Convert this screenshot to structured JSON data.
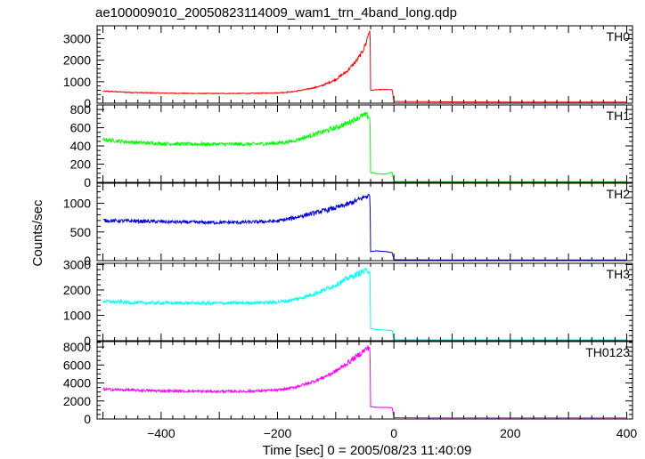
{
  "title": "ae100009010_20050823114009_wam1_trn_4band_long.qdp",
  "chart_data": {
    "type": "line",
    "title": "ae100009010_20050823114009_wam1_trn_4band_long.qdp",
    "xlabel": "Time [sec] 0 = 2005/08/23 11:40:09",
    "ylabel": "Counts/sec",
    "xlim": [
      -510,
      410
    ],
    "x_ticks": [
      -400,
      -200,
      0,
      200,
      400
    ],
    "grid": false,
    "x_minor_step": 20,
    "panels": [
      {
        "name": "TH0",
        "color": "#ff0000",
        "ylim": [
          0,
          3600
        ],
        "y_ticks": [
          0,
          1000,
          2000,
          3000
        ],
        "y_minor_step": 200,
        "points": [
          [
            -500,
            560
          ],
          [
            -450,
            500
          ],
          [
            -400,
            470
          ],
          [
            -350,
            455
          ],
          [
            -300,
            450
          ],
          [
            -250,
            455
          ],
          [
            -200,
            480
          ],
          [
            -175,
            530
          ],
          [
            -150,
            640
          ],
          [
            -125,
            800
          ],
          [
            -100,
            1100
          ],
          [
            -80,
            1500
          ],
          [
            -65,
            1950
          ],
          [
            -55,
            2350
          ],
          [
            -48,
            2800
          ],
          [
            -43,
            3300
          ],
          [
            -41,
            3500
          ],
          [
            -40,
            600
          ],
          [
            -30,
            620
          ],
          [
            -15,
            640
          ],
          [
            -3,
            620
          ],
          [
            0,
            80
          ],
          [
            100,
            60
          ],
          [
            200,
            55
          ],
          [
            300,
            50
          ],
          [
            400,
            50
          ]
        ]
      },
      {
        "name": "TH1",
        "color": "#00ff00",
        "ylim": [
          0,
          850
        ],
        "y_ticks": [
          0,
          200,
          400,
          600,
          800
        ],
        "y_minor_step": 50,
        "points": [
          [
            -500,
            470
          ],
          [
            -450,
            440
          ],
          [
            -400,
            425
          ],
          [
            -350,
            420
          ],
          [
            -300,
            420
          ],
          [
            -250,
            420
          ],
          [
            -200,
            430
          ],
          [
            -175,
            450
          ],
          [
            -150,
            500
          ],
          [
            -125,
            550
          ],
          [
            -100,
            600
          ],
          [
            -80,
            650
          ],
          [
            -65,
            700
          ],
          [
            -55,
            730
          ],
          [
            -48,
            740
          ],
          [
            -43,
            720
          ],
          [
            -41,
            700
          ],
          [
            -40,
            110
          ],
          [
            -30,
            95
          ],
          [
            -15,
            90
          ],
          [
            -3,
            110
          ],
          [
            0,
            10
          ],
          [
            100,
            8
          ],
          [
            200,
            8
          ],
          [
            300,
            8
          ],
          [
            400,
            8
          ]
        ]
      },
      {
        "name": "TH2",
        "color": "#0000dd",
        "ylim": [
          0,
          1350
        ],
        "y_ticks": [
          0,
          500,
          1000
        ],
        "y_minor_step": 100,
        "points": [
          [
            -500,
            700
          ],
          [
            -450,
            690
          ],
          [
            -400,
            680
          ],
          [
            -350,
            670
          ],
          [
            -300,
            665
          ],
          [
            -250,
            670
          ],
          [
            -200,
            690
          ],
          [
            -175,
            740
          ],
          [
            -150,
            800
          ],
          [
            -125,
            860
          ],
          [
            -100,
            920
          ],
          [
            -80,
            980
          ],
          [
            -65,
            1040
          ],
          [
            -55,
            1090
          ],
          [
            -48,
            1120
          ],
          [
            -43,
            1130
          ],
          [
            -41,
            1110
          ],
          [
            -40,
            160
          ],
          [
            -30,
            170
          ],
          [
            -15,
            160
          ],
          [
            -3,
            140
          ],
          [
            0,
            15
          ],
          [
            100,
            12
          ],
          [
            200,
            12
          ],
          [
            300,
            12
          ],
          [
            400,
            12
          ]
        ]
      },
      {
        "name": "TH3",
        "color": "#00ffff",
        "ylim": [
          0,
          3050
        ],
        "y_ticks": [
          0,
          1000,
          2000,
          3000
        ],
        "y_minor_step": 200,
        "points": [
          [
            -500,
            1550
          ],
          [
            -450,
            1500
          ],
          [
            -400,
            1490
          ],
          [
            -350,
            1480
          ],
          [
            -300,
            1480
          ],
          [
            -250,
            1490
          ],
          [
            -200,
            1520
          ],
          [
            -175,
            1600
          ],
          [
            -150,
            1750
          ],
          [
            -125,
            1950
          ],
          [
            -100,
            2200
          ],
          [
            -80,
            2450
          ],
          [
            -65,
            2600
          ],
          [
            -55,
            2700
          ],
          [
            -48,
            2750
          ],
          [
            -43,
            2780
          ],
          [
            -41,
            2700
          ],
          [
            -40,
            480
          ],
          [
            -30,
            440
          ],
          [
            -15,
            420
          ],
          [
            -3,
            400
          ],
          [
            0,
            40
          ],
          [
            100,
            35
          ],
          [
            200,
            35
          ],
          [
            300,
            35
          ],
          [
            400,
            35
          ]
        ]
      },
      {
        "name": "TH0123",
        "color": "#ff00ff",
        "ylim": [
          0,
          8600
        ],
        "y_ticks": [
          0,
          2000,
          4000,
          6000,
          8000
        ],
        "y_minor_step": 500,
        "points": [
          [
            -500,
            3300
          ],
          [
            -450,
            3200
          ],
          [
            -400,
            3120
          ],
          [
            -350,
            3080
          ],
          [
            -300,
            3060
          ],
          [
            -250,
            3080
          ],
          [
            -200,
            3200
          ],
          [
            -175,
            3450
          ],
          [
            -150,
            3900
          ],
          [
            -125,
            4500
          ],
          [
            -100,
            5300
          ],
          [
            -80,
            6200
          ],
          [
            -65,
            6900
          ],
          [
            -55,
            7400
          ],
          [
            -48,
            7750
          ],
          [
            -43,
            7950
          ],
          [
            -41,
            7900
          ],
          [
            -40,
            1350
          ],
          [
            -30,
            1300
          ],
          [
            -15,
            1280
          ],
          [
            -3,
            1250
          ],
          [
            0,
            150
          ],
          [
            100,
            120
          ],
          [
            200,
            120
          ],
          [
            300,
            120
          ],
          [
            400,
            120
          ]
        ]
      }
    ]
  }
}
